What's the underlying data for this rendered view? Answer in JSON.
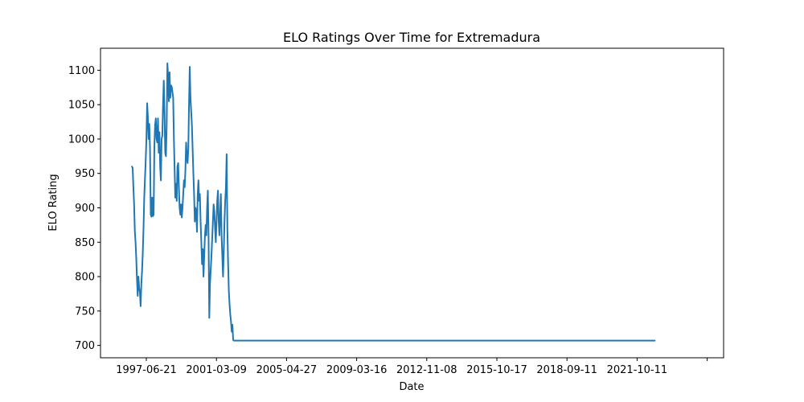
{
  "chart_data": {
    "type": "line",
    "title": "ELO Ratings Over Time for Extremadura",
    "xlabel": "Date",
    "ylabel": "ELO Rating",
    "x_tick_labels": [
      "1997-06-21",
      "2001-03-09",
      "2005-04-27",
      "2009-03-16",
      "2012-11-08",
      "2015-10-17",
      "2018-09-11",
      "2021-10-11",
      ""
    ],
    "y_tick_labels": [
      "700",
      "750",
      "800",
      "850",
      "900",
      "950",
      "1000",
      "1050",
      "1100"
    ],
    "y_ticks": [
      700,
      750,
      800,
      850,
      900,
      950,
      1000,
      1050,
      1100
    ],
    "ylim": [
      682,
      1132
    ],
    "grid": false,
    "line_color": "#1f77b4",
    "series": [
      {
        "points": [
          [
            "1996-09-15",
            960
          ],
          [
            "1996-09-29",
            958
          ],
          [
            "1996-10-13",
            930
          ],
          [
            "1996-10-27",
            905
          ],
          [
            "1996-11-10",
            866
          ],
          [
            "1996-11-24",
            850
          ],
          [
            "1996-12-08",
            826
          ],
          [
            "1996-12-22",
            795
          ],
          [
            "1997-01-05",
            772
          ],
          [
            "1997-01-19",
            800
          ],
          [
            "1997-02-02",
            783
          ],
          [
            "1997-02-16",
            778
          ],
          [
            "1997-03-02",
            757
          ],
          [
            "1997-03-16",
            790
          ],
          [
            "1997-03-30",
            808
          ],
          [
            "1997-04-13",
            835
          ],
          [
            "1997-04-27",
            870
          ],
          [
            "1997-05-11",
            915
          ],
          [
            "1997-05-25",
            942
          ],
          [
            "1997-06-08",
            968
          ],
          [
            "1997-06-22",
            1000
          ],
          [
            "1997-07-06",
            1052
          ],
          [
            "1997-07-20",
            1033
          ],
          [
            "1997-08-03",
            1000
          ],
          [
            "1997-08-17",
            1022
          ],
          [
            "1997-08-31",
            985
          ],
          [
            "1997-09-14",
            890
          ],
          [
            "1997-09-28",
            887
          ],
          [
            "1997-10-12",
            915
          ],
          [
            "1997-10-26",
            888
          ],
          [
            "1997-11-09",
            890
          ],
          [
            "1997-11-23",
            990
          ],
          [
            "1997-12-07",
            1020
          ],
          [
            "1997-12-21",
            1030
          ],
          [
            "1998-01-04",
            1000
          ],
          [
            "1998-01-18",
            995
          ],
          [
            "1998-02-01",
            1030
          ],
          [
            "1998-02-15",
            980
          ],
          [
            "1998-03-01",
            1010
          ],
          [
            "1998-03-15",
            960
          ],
          [
            "1998-03-29",
            940
          ],
          [
            "1998-04-12",
            1000
          ],
          [
            "1998-04-26",
            1005
          ],
          [
            "1998-05-10",
            1050
          ],
          [
            "1998-05-24",
            1085
          ],
          [
            "1998-06-07",
            1040
          ],
          [
            "1998-06-21",
            980
          ],
          [
            "1998-07-05",
            975
          ],
          [
            "1998-07-19",
            1020
          ],
          [
            "1998-08-02",
            1110
          ],
          [
            "1998-08-16",
            1090
          ],
          [
            "1998-08-30",
            1055
          ],
          [
            "1998-09-13",
            1097
          ],
          [
            "1998-09-27",
            1060
          ],
          [
            "1998-10-11",
            1078
          ],
          [
            "1998-10-25",
            1076
          ],
          [
            "1998-11-08",
            1068
          ],
          [
            "1998-11-22",
            1060
          ],
          [
            "1998-12-06",
            1000
          ],
          [
            "1998-12-20",
            960
          ],
          [
            "1999-01-03",
            915
          ],
          [
            "1999-01-17",
            935
          ],
          [
            "1999-01-31",
            910
          ],
          [
            "1999-02-14",
            960
          ],
          [
            "1999-02-28",
            965
          ],
          [
            "1999-03-14",
            930
          ],
          [
            "1999-03-28",
            900
          ],
          [
            "1999-04-11",
            890
          ],
          [
            "1999-04-25",
            905
          ],
          [
            "1999-05-09",
            886
          ],
          [
            "1999-05-23",
            900
          ],
          [
            "1999-06-06",
            920
          ],
          [
            "1999-06-20",
            940
          ],
          [
            "1999-07-04",
            930
          ],
          [
            "1999-07-18",
            955
          ],
          [
            "1999-08-01",
            995
          ],
          [
            "1999-08-15",
            975
          ],
          [
            "1999-08-29",
            965
          ],
          [
            "1999-09-12",
            985
          ],
          [
            "1999-09-26",
            1050
          ],
          [
            "1999-10-10",
            1105
          ],
          [
            "1999-10-24",
            1060
          ],
          [
            "1999-11-07",
            1040
          ],
          [
            "1999-11-21",
            1020
          ],
          [
            "1999-12-05",
            985
          ],
          [
            "1999-12-19",
            950
          ],
          [
            "2000-01-02",
            920
          ],
          [
            "2000-01-16",
            880
          ],
          [
            "2000-01-30",
            900
          ],
          [
            "2000-02-13",
            895
          ],
          [
            "2000-02-27",
            865
          ],
          [
            "2000-03-12",
            920
          ],
          [
            "2000-03-26",
            940
          ],
          [
            "2000-04-09",
            910
          ],
          [
            "2000-04-23",
            920
          ],
          [
            "2000-05-07",
            880
          ],
          [
            "2000-05-21",
            850
          ],
          [
            "2000-06-04",
            818
          ],
          [
            "2000-06-18",
            840
          ],
          [
            "2000-07-02",
            800
          ],
          [
            "2000-07-16",
            830
          ],
          [
            "2000-07-30",
            860
          ],
          [
            "2000-08-13",
            875
          ],
          [
            "2000-08-27",
            860
          ],
          [
            "2000-09-10",
            900
          ],
          [
            "2000-09-24",
            925
          ],
          [
            "2000-10-08",
            860
          ],
          [
            "2000-10-22",
            740
          ],
          [
            "2000-11-05",
            790
          ],
          [
            "2000-11-19",
            810
          ],
          [
            "2000-12-03",
            830
          ],
          [
            "2000-12-17",
            855
          ],
          [
            "2000-12-31",
            880
          ],
          [
            "2001-01-14",
            905
          ],
          [
            "2001-01-28",
            895
          ],
          [
            "2001-02-11",
            870
          ],
          [
            "2001-02-25",
            850
          ],
          [
            "2001-03-11",
            880
          ],
          [
            "2001-03-25",
            910
          ],
          [
            "2001-04-08",
            925
          ],
          [
            "2001-04-22",
            880
          ],
          [
            "2001-05-06",
            860
          ],
          [
            "2001-05-20",
            890
          ],
          [
            "2001-06-03",
            920
          ],
          [
            "2001-06-17",
            860
          ],
          [
            "2001-07-01",
            830
          ],
          [
            "2001-07-15",
            800
          ],
          [
            "2001-07-29",
            835
          ],
          [
            "2001-08-12",
            880
          ],
          [
            "2001-08-26",
            910
          ],
          [
            "2001-09-09",
            930
          ],
          [
            "2001-09-23",
            978
          ],
          [
            "2001-10-07",
            870
          ],
          [
            "2001-10-21",
            820
          ],
          [
            "2001-11-04",
            780
          ],
          [
            "2001-11-18",
            760
          ],
          [
            "2001-12-02",
            745
          ],
          [
            "2001-12-16",
            735
          ],
          [
            "2001-12-30",
            720
          ],
          [
            "2002-01-13",
            730
          ],
          [
            "2002-01-27",
            708
          ],
          [
            "2002-02-10",
            707
          ],
          [
            "2003-06-01",
            707
          ],
          [
            "2005-06-01",
            707
          ],
          [
            "2010-06-01",
            707
          ],
          [
            "2015-06-01",
            707
          ],
          [
            "2020-06-01",
            707
          ],
          [
            "2024-06-01",
            707
          ]
        ]
      }
    ]
  }
}
